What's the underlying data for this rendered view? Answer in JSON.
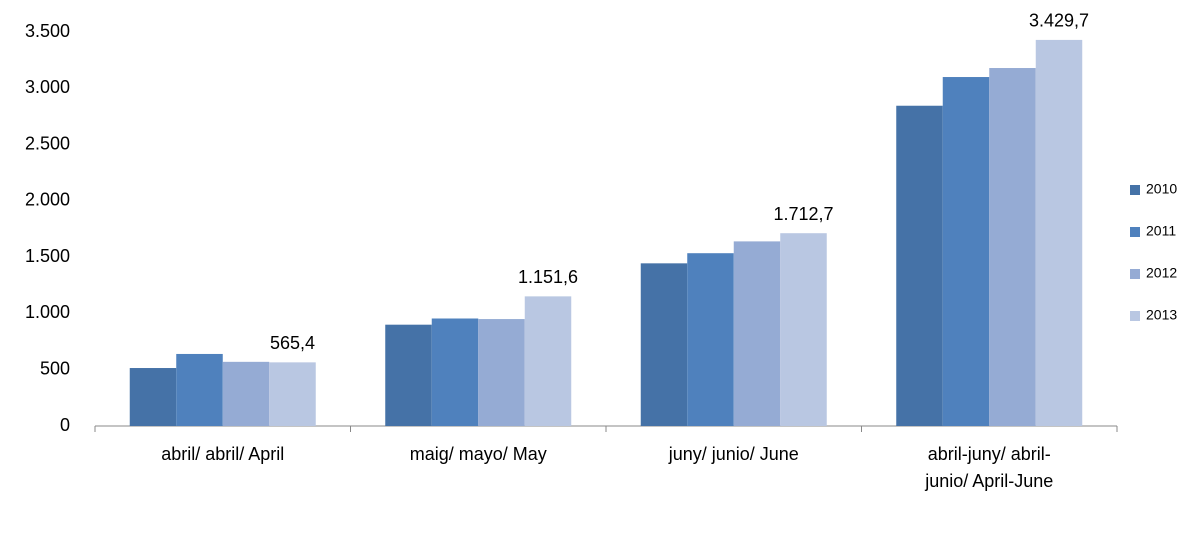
{
  "chart_data": {
    "type": "bar",
    "categories": [
      "abril/ abril/ April",
      "maig/ mayo/ May",
      "juny/ junio/ June",
      "abril-juny/ abril-junio/ April-June"
    ],
    "series": [
      {
        "name": "2010",
        "color": "#4572a7",
        "values": [
          515,
          900,
          1445,
          2845
        ]
      },
      {
        "name": "2011",
        "color": "#4f81bd",
        "values": [
          640,
          955,
          1535,
          3100
        ]
      },
      {
        "name": "2012",
        "color": "#95abd4",
        "values": [
          570,
          950,
          1640,
          3180
        ]
      },
      {
        "name": "2013",
        "color": "#b9c7e2",
        "values": [
          565.4,
          1151.6,
          1712.7,
          3429.7
        ],
        "value_labels": [
          "565,4",
          "1.151,6",
          "1.712,7",
          "3.429,7"
        ]
      }
    ],
    "ylim": [
      0,
      3500
    ],
    "yticks": [
      0,
      500,
      {
        "value": 1000,
        "label": "1.000"
      },
      {
        "value": 1500,
        "label": "1.500"
      },
      {
        "value": 2000,
        "label": "2.000"
      },
      {
        "value": 2500,
        "label": "2.500"
      },
      {
        "value": 3000,
        "label": "3.000"
      },
      {
        "value": 3500,
        "label": "3.500"
      }
    ],
    "legend": "right",
    "grid": false
  }
}
